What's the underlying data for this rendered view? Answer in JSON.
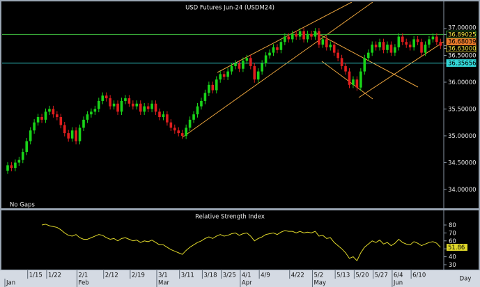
{
  "chart_data": [
    {
      "type": "candlestick",
      "title": "USD  Futures  Jun-24  (USDM24)",
      "annotation": "No Gaps",
      "x_label": "Day",
      "categories": [
        null,
        null,
        null,
        null,
        null,
        null,
        "1/15",
        null,
        null,
        null,
        null,
        "1/22",
        null,
        null,
        null,
        null,
        null,
        null,
        null,
        "2/1",
        null,
        null,
        null,
        null,
        null,
        null,
        "2/12",
        null,
        null,
        null,
        null,
        null,
        null,
        "2/19",
        null,
        null,
        null,
        null,
        null,
        null,
        "3/1",
        null,
        null,
        null,
        null,
        null,
        "3/11",
        null,
        null,
        null,
        null,
        null,
        "3/18",
        null,
        null,
        null,
        null,
        "3/25",
        null,
        null,
        null,
        null,
        "4/1",
        null,
        null,
        null,
        null,
        "4/9",
        null,
        null,
        null,
        null,
        null,
        null,
        null,
        "4/22",
        null,
        null,
        null,
        null,
        null,
        "5/2",
        null,
        null,
        null,
        null,
        null,
        "5/13",
        null,
        null,
        null,
        null,
        "5/20",
        null,
        null,
        null,
        null,
        "5/27",
        null,
        null,
        null,
        null,
        "6/4",
        null,
        null,
        null,
        null,
        "6/10",
        null,
        null,
        null,
        null,
        null,
        null,
        null
      ],
      "months": [
        "Jan",
        null,
        null,
        null,
        null,
        null,
        null,
        null,
        null,
        null,
        null,
        null,
        null,
        null,
        null,
        null,
        null,
        null,
        null,
        "Feb",
        null,
        null,
        null,
        null,
        null,
        null,
        null,
        null,
        null,
        null,
        null,
        null,
        null,
        null,
        null,
        null,
        null,
        null,
        null,
        null,
        "Mar",
        null,
        null,
        null,
        null,
        null,
        null,
        null,
        null,
        null,
        null,
        null,
        null,
        null,
        null,
        null,
        null,
        null,
        null,
        null,
        null,
        null,
        "Apr",
        null,
        null,
        null,
        null,
        null,
        null,
        null,
        null,
        null,
        null,
        null,
        null,
        null,
        null,
        null,
        null,
        null,
        null,
        "May",
        null,
        null,
        null,
        null,
        null,
        null,
        null,
        null,
        null,
        null,
        null,
        null,
        null,
        null,
        null,
        null,
        null,
        null,
        null,
        null,
        "Jun",
        null,
        null,
        null,
        null,
        null,
        null,
        null,
        null,
        null,
        null,
        null,
        null
      ],
      "open": [
        34.35,
        34.45,
        34.4,
        34.5,
        34.55,
        34.7,
        34.9,
        35.1,
        35.25,
        35.35,
        35.3,
        35.45,
        35.5,
        35.4,
        35.35,
        35.2,
        35.05,
        34.95,
        35.1,
        34.9,
        35.15,
        35.3,
        35.4,
        35.45,
        35.5,
        35.65,
        35.75,
        35.7,
        35.55,
        35.6,
        35.45,
        35.65,
        35.7,
        35.6,
        35.55,
        35.6,
        35.45,
        35.55,
        35.5,
        35.6,
        35.45,
        35.35,
        35.4,
        35.25,
        35.15,
        35.1,
        35.05,
        35.0,
        35.15,
        35.3,
        35.4,
        35.55,
        35.65,
        35.8,
        35.95,
        35.85,
        36.05,
        36.15,
        36.1,
        36.2,
        36.3,
        36.35,
        36.25,
        36.4,
        36.45,
        36.3,
        36.05,
        36.2,
        36.35,
        36.5,
        36.55,
        36.65,
        36.6,
        36.75,
        36.85,
        36.8,
        36.9,
        36.85,
        36.95,
        36.8,
        36.9,
        36.85,
        36.95,
        36.7,
        36.8,
        36.65,
        36.7,
        36.55,
        36.45,
        36.3,
        36.2,
        35.95,
        36.05,
        35.9,
        36.2,
        36.45,
        36.55,
        36.7,
        36.65,
        36.75,
        36.6,
        36.7,
        36.55,
        36.65,
        36.85,
        36.75,
        36.7,
        36.65,
        36.8,
        36.75,
        36.55,
        36.7,
        36.8,
        36.85,
        36.75
      ],
      "high": [
        34.51,
        34.51,
        34.56,
        34.61,
        34.76,
        34.96,
        35.16,
        35.31,
        35.41,
        35.41,
        35.51,
        35.56,
        35.56,
        35.46,
        35.41,
        35.26,
        35.11,
        35.16,
        35.16,
        35.21,
        35.36,
        35.46,
        35.51,
        35.56,
        35.71,
        35.81,
        35.81,
        35.76,
        35.66,
        35.66,
        35.71,
        35.76,
        35.76,
        35.66,
        35.66,
        35.66,
        35.61,
        35.61,
        35.66,
        35.66,
        35.51,
        35.46,
        35.46,
        35.31,
        35.21,
        35.16,
        35.11,
        35.21,
        35.36,
        35.46,
        35.61,
        35.71,
        35.86,
        36.01,
        36.01,
        36.11,
        36.21,
        36.21,
        36.26,
        36.36,
        36.41,
        36.41,
        36.46,
        36.51,
        36.51,
        36.36,
        36.26,
        36.41,
        36.56,
        36.61,
        36.71,
        36.71,
        36.81,
        36.91,
        36.91,
        36.96,
        36.96,
        37.01,
        37.01,
        36.96,
        36.96,
        37.01,
        37.01,
        36.86,
        36.86,
        36.76,
        36.76,
        36.61,
        36.51,
        36.36,
        36.26,
        36.11,
        36.11,
        36.26,
        36.51,
        36.61,
        36.76,
        36.76,
        36.81,
        36.81,
        36.76,
        36.76,
        36.71,
        36.91,
        36.91,
        36.81,
        36.76,
        36.86,
        36.86,
        36.81,
        36.76,
        36.86,
        36.91,
        36.91,
        36.81
      ],
      "low": [
        34.29,
        34.34,
        34.34,
        34.44,
        34.49,
        34.64,
        34.84,
        35.04,
        35.19,
        35.24,
        35.24,
        35.39,
        35.34,
        35.29,
        35.14,
        34.99,
        34.89,
        34.89,
        34.84,
        34.84,
        35.09,
        35.24,
        35.34,
        35.39,
        35.44,
        35.59,
        35.64,
        35.49,
        35.49,
        35.39,
        35.39,
        35.59,
        35.54,
        35.49,
        35.49,
        35.39,
        35.39,
        35.44,
        35.44,
        35.39,
        35.29,
        35.29,
        35.19,
        35.09,
        35.04,
        34.99,
        34.94,
        34.94,
        35.09,
        35.24,
        35.34,
        35.49,
        35.59,
        35.74,
        35.79,
        35.79,
        35.99,
        36.04,
        36.04,
        36.14,
        36.24,
        36.19,
        36.19,
        36.34,
        36.24,
        35.99,
        35.99,
        36.14,
        36.29,
        36.44,
        36.49,
        36.54,
        36.54,
        36.69,
        36.74,
        36.74,
        36.79,
        36.79,
        36.74,
        36.74,
        36.79,
        36.79,
        36.64,
        36.64,
        36.59,
        36.59,
        36.49,
        36.39,
        36.24,
        36.14,
        35.89,
        35.89,
        35.84,
        35.84,
        36.14,
        36.39,
        36.49,
        36.59,
        36.59,
        36.54,
        36.54,
        36.49,
        36.49,
        36.59,
        36.69,
        36.64,
        36.59,
        36.59,
        36.69,
        36.49,
        36.49,
        36.64,
        36.74,
        36.69,
        36.62
      ],
      "close": [
        34.45,
        34.4,
        34.5,
        34.55,
        34.7,
        34.9,
        35.1,
        35.25,
        35.35,
        35.3,
        35.45,
        35.5,
        35.4,
        35.35,
        35.2,
        35.05,
        34.95,
        35.1,
        34.9,
        35.15,
        35.3,
        35.4,
        35.45,
        35.5,
        35.65,
        35.75,
        35.7,
        35.55,
        35.6,
        35.45,
        35.65,
        35.7,
        35.6,
        35.55,
        35.6,
        35.45,
        35.55,
        35.5,
        35.6,
        35.45,
        35.35,
        35.4,
        35.25,
        35.15,
        35.1,
        35.05,
        35.0,
        35.15,
        35.3,
        35.4,
        35.55,
        35.65,
        35.8,
        35.95,
        35.85,
        36.05,
        36.15,
        36.1,
        36.2,
        36.3,
        36.35,
        36.25,
        36.4,
        36.45,
        36.3,
        36.05,
        36.2,
        36.35,
        36.5,
        36.55,
        36.65,
        36.6,
        36.75,
        36.85,
        36.8,
        36.9,
        36.85,
        36.95,
        36.8,
        36.9,
        36.85,
        36.95,
        36.7,
        36.8,
        36.65,
        36.7,
        36.55,
        36.45,
        36.3,
        36.2,
        35.95,
        36.05,
        35.9,
        36.2,
        36.45,
        36.55,
        36.7,
        36.65,
        36.75,
        36.6,
        36.7,
        36.55,
        36.65,
        36.85,
        36.75,
        36.7,
        36.65,
        36.8,
        36.75,
        36.55,
        36.7,
        36.8,
        36.85,
        36.75,
        36.68
      ],
      "up_color": "#19d419",
      "down_color": "#e01e1e",
      "ylim": [
        33.68,
        37.47
      ],
      "yticks": [
        {
          "value": 34,
          "label": "34.00000"
        },
        {
          "value": 34.5,
          "label": "34.50000"
        },
        {
          "value": 35,
          "label": "35.00000"
        },
        {
          "value": 35.5,
          "label": "35.50000"
        },
        {
          "value": 36,
          "label": "36.00000"
        },
        {
          "value": 36.5,
          "label": "36.50000"
        },
        {
          "value": 37,
          "label": "37.00000"
        }
      ],
      "levels": [
        {
          "value": 36.89025,
          "line": true,
          "color": "#3fbf3f",
          "box": "#000000",
          "text_color": "#f0e040"
        },
        {
          "value": 36.68039,
          "line": false,
          "color": "#e8782a",
          "box": "#e8782a",
          "text_color": "#000000"
        },
        {
          "value": 36.63,
          "label": "36.63000",
          "line": false,
          "color": "#f0e040",
          "box": "#000000",
          "text_color": "#f0e040"
        },
        {
          "value": 36.35656,
          "line": true,
          "color": "#33d6d6",
          "box": "#33d6d6",
          "text_color": "#000000"
        }
      ],
      "grid": false
    },
    {
      "type": "line",
      "title": "Relative  Strength  Index",
      "values": [
        null,
        null,
        null,
        null,
        null,
        null,
        null,
        null,
        null,
        80,
        81,
        79,
        78,
        77,
        74,
        70,
        67,
        66,
        68,
        64,
        62,
        62,
        64,
        66,
        68,
        67,
        64,
        62,
        63,
        60,
        63,
        64,
        62,
        60,
        61,
        58,
        60,
        59,
        61,
        58,
        55,
        55,
        52,
        49,
        47,
        45,
        43,
        48,
        52,
        55,
        58,
        60,
        63,
        65,
        63,
        66,
        68,
        66,
        67,
        69,
        70,
        67,
        69,
        70,
        66,
        60,
        63,
        65,
        68,
        69,
        70,
        68,
        71,
        73,
        72,
        72,
        70,
        72,
        70,
        71,
        70,
        72,
        66,
        67,
        63,
        64,
        58,
        54,
        50,
        45,
        38,
        40,
        35,
        45,
        52,
        56,
        60,
        58,
        61,
        56,
        58,
        54,
        57,
        62,
        58,
        56,
        55,
        59,
        57,
        54,
        56,
        58,
        59,
        57,
        51.86
      ],
      "color": "#e0d82a",
      "ylim": [
        25.6,
        94.9
      ],
      "yticks": [
        30,
        40,
        50,
        60,
        70,
        80
      ],
      "grid": false
    }
  ]
}
